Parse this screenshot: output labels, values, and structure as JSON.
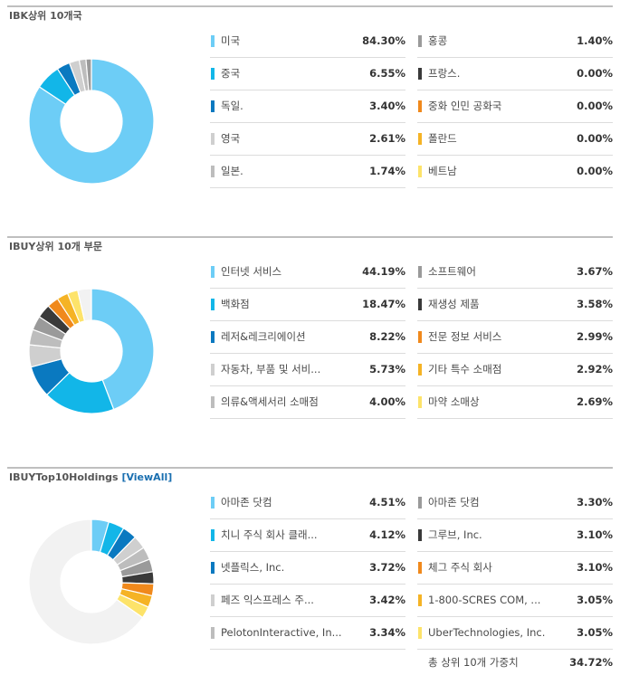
{
  "colors": [
    "#6dcdf6",
    "#12b6e8",
    "#0a79c0",
    "#cfcfcf",
    "#bdbdbd",
    "#9a9a9a",
    "#3a3a3a",
    "#f0891c",
    "#f5b325",
    "#fde36a"
  ],
  "sections": [
    {
      "title": "IBK상위 10개국",
      "link": "",
      "rows": [
        {
          "name": "미국",
          "pct": "84.30%"
        },
        {
          "name": "중국",
          "pct": "6.55%"
        },
        {
          "name": "독일.",
          "pct": "3.40%"
        },
        {
          "name": "영국",
          "pct": "2.61%"
        },
        {
          "name": "일본.",
          "pct": "1.74%"
        },
        {
          "name": "홍콩",
          "pct": "1.40%"
        },
        {
          "name": "프랑스.",
          "pct": "0.00%"
        },
        {
          "name": "중화 인민 공화국",
          "pct": "0.00%"
        },
        {
          "name": "폴란드",
          "pct": "0.00%"
        },
        {
          "name": "베트남",
          "pct": "0.00%"
        }
      ],
      "total": null
    },
    {
      "title": "IBUY상위 10개 부문",
      "link": "",
      "rows": [
        {
          "name": "인터넷 서비스",
          "pct": "44.19%"
        },
        {
          "name": "백화점",
          "pct": "18.47%"
        },
        {
          "name": "레저&레크리에이션",
          "pct": "8.22%"
        },
        {
          "name": "자동차, 부품 및 서비...",
          "pct": "5.73%"
        },
        {
          "name": "의류&액세서리 소매점",
          "pct": "4.00%"
        },
        {
          "name": "소프트웨어",
          "pct": "3.67%"
        },
        {
          "name": "재생성 제품",
          "pct": "3.58%"
        },
        {
          "name": "전문 정보 서비스",
          "pct": "2.99%"
        },
        {
          "name": "기타 특수 소매점",
          "pct": "2.92%"
        },
        {
          "name": "마약 소매상",
          "pct": "2.69%"
        }
      ],
      "total": null
    },
    {
      "title": "IBUYTop10Holdings",
      "link": "[ViewAll]",
      "rows": [
        {
          "name": "아마존 닷컴",
          "pct": "4.51%"
        },
        {
          "name": "치니 주식 회사 클래...",
          "pct": "4.12%"
        },
        {
          "name": "넷플릭스, Inc.",
          "pct": "3.72%"
        },
        {
          "name": "페즈 익스프레스 주...",
          "pct": "3.42%"
        },
        {
          "name": "PelotonInteractive, In...",
          "pct": "3.34%"
        },
        {
          "name": "아마존 닷컴",
          "pct": "3.30%"
        },
        {
          "name": "그루브, Inc.",
          "pct": "3.10%"
        },
        {
          "name": "체그 주식 회사",
          "pct": "3.10%"
        },
        {
          "name": "1-800-SCRES COM, ...",
          "pct": "3.05%"
        },
        {
          "name": "UberTechnologies, Inc.",
          "pct": "3.05%"
        }
      ],
      "total": {
        "name": "총 상위 10개 가중치",
        "pct": "34.72%"
      }
    }
  ],
  "chart_data": [
    {
      "type": "pie",
      "title": "IBK상위 10개국",
      "categories": [
        "미국",
        "중국",
        "독일.",
        "영국",
        "일본.",
        "홍콩",
        "프랑스.",
        "중화 인민 공화국",
        "폴란드",
        "베트남"
      ],
      "values": [
        84.3,
        6.55,
        3.4,
        2.61,
        1.74,
        1.4,
        0.0,
        0.0,
        0.0,
        0.0
      ],
      "remainder": 0
    },
    {
      "type": "pie",
      "title": "IBUY상위 10개 부문",
      "categories": [
        "인터넷 서비스",
        "백화점",
        "레저&레크리에이션",
        "자동차, 부품 및 서비...",
        "의류&액세서리 소매점",
        "소프트웨어",
        "재생성 제품",
        "전문 정보 서비스",
        "기타 특수 소매점",
        "마약 소매상"
      ],
      "values": [
        44.19,
        18.47,
        8.22,
        5.73,
        4.0,
        3.67,
        3.58,
        2.99,
        2.92,
        2.69
      ],
      "remainder": 3.54
    },
    {
      "type": "pie",
      "title": "IBUYTop10Holdings",
      "categories": [
        "아마존 닷컴",
        "치니 주식 회사 클래...",
        "넷플릭스, Inc.",
        "페즈 익스프레스 주...",
        "PelotonInteractive, In...",
        "아마존 닷컴",
        "그루브, Inc.",
        "체그 주식 회사",
        "1-800-SCRES COM, ...",
        "UberTechnologies, Inc."
      ],
      "values": [
        4.51,
        4.12,
        3.72,
        3.42,
        3.34,
        3.3,
        3.1,
        3.1,
        3.05,
        3.05
      ],
      "remainder": 65.28
    }
  ]
}
